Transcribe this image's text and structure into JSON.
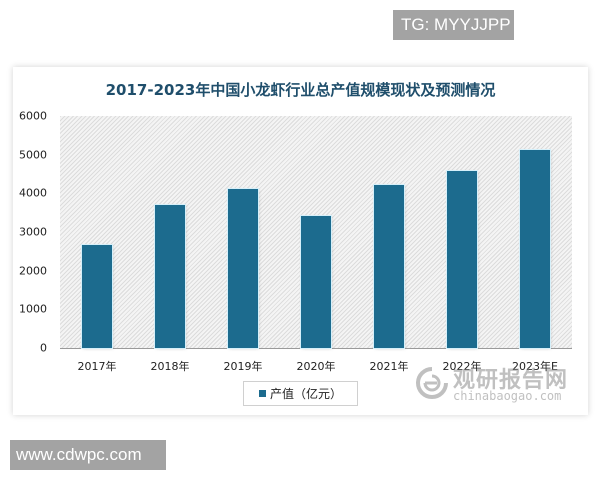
{
  "badges": {
    "top_right": "TG: MYYJJPP",
    "bottom_left": "www.cdwpc.com"
  },
  "watermark": {
    "cn": "观研报告网",
    "en": "chinabaogao.com"
  },
  "colors": {
    "bar": "#1c6b8e",
    "title": "#1f4e6b"
  },
  "chart_data": {
    "type": "bar",
    "title": "2017-2023年中国小龙虾行业总产值规模现状及预测情况",
    "xlabel": "",
    "ylabel": "",
    "categories": [
      "2017年",
      "2018年",
      "2019年",
      "2020年",
      "2021年",
      "2022年",
      "2023年E"
    ],
    "series": [
      {
        "name": "产值（亿元）",
        "values": [
          2660,
          3700,
          4110,
          3410,
          4220,
          4580,
          5120
        ]
      }
    ],
    "ylim": [
      0,
      6000
    ],
    "yticks": [
      "6000",
      "5000",
      "4000",
      "3000",
      "2000",
      "1000",
      "0"
    ],
    "grid": false,
    "legend_position": "bottom",
    "legend": [
      "产值（亿元）"
    ]
  }
}
